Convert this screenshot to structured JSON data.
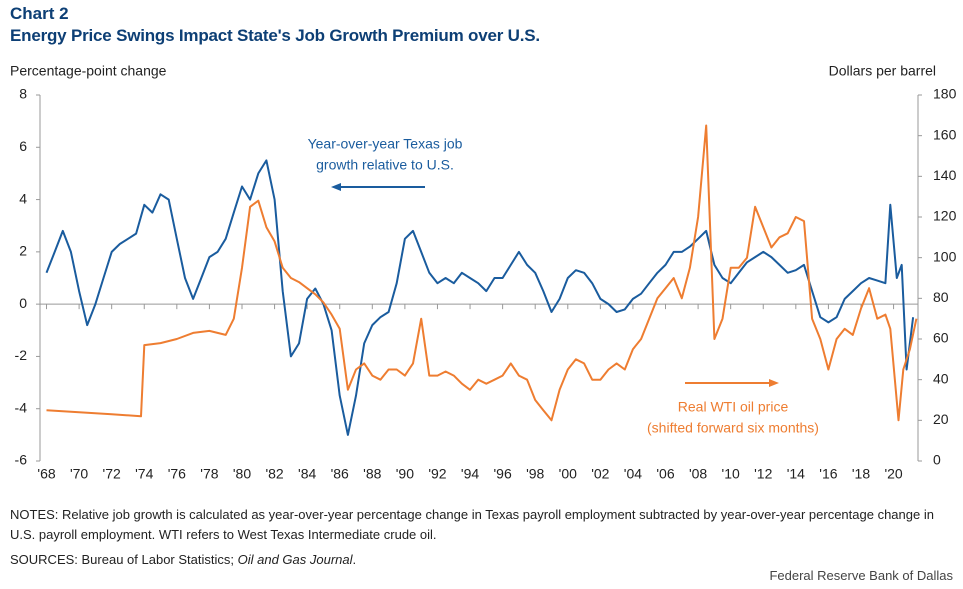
{
  "chart_data": {
    "type": "line",
    "chart_label": "Chart 2",
    "title": "Energy Price Swings Impact State's Job Growth Premium over U.S.",
    "ylabel": "Percentage-point change",
    "y2label": "Dollars per barrel",
    "xlim": [
      1967.6,
      2021.5
    ],
    "xticks": [
      {
        "value": 1968,
        "label": "'68"
      },
      {
        "value": 1970,
        "label": "'70"
      },
      {
        "value": 1972,
        "label": "'72"
      },
      {
        "value": 1974,
        "label": "'74"
      },
      {
        "value": 1976,
        "label": "'76"
      },
      {
        "value": 1978,
        "label": "'78"
      },
      {
        "value": 1980,
        "label": "'80"
      },
      {
        "value": 1982,
        "label": "'82"
      },
      {
        "value": 1984,
        "label": "'84"
      },
      {
        "value": 1986,
        "label": "'86"
      },
      {
        "value": 1988,
        "label": "'88"
      },
      {
        "value": 1990,
        "label": "'90"
      },
      {
        "value": 1992,
        "label": "'92"
      },
      {
        "value": 1994,
        "label": "'94"
      },
      {
        "value": 1996,
        "label": "'96"
      },
      {
        "value": 1998,
        "label": "'98"
      },
      {
        "value": 2000,
        "label": "'00"
      },
      {
        "value": 2002,
        "label": "'02"
      },
      {
        "value": 2004,
        "label": "'04"
      },
      {
        "value": 2006,
        "label": "'06"
      },
      {
        "value": 2008,
        "label": "'08"
      },
      {
        "value": 2010,
        "label": "'10"
      },
      {
        "value": 2012,
        "label": "'12"
      },
      {
        "value": 2014,
        "label": "'14"
      },
      {
        "value": 2016,
        "label": "'16"
      },
      {
        "value": 2018,
        "label": "'18"
      },
      {
        "value": 2020,
        "label": "'20"
      }
    ],
    "ylim": [
      -6,
      8
    ],
    "yticks": [
      -6,
      -4,
      -2,
      0,
      2,
      4,
      6,
      8
    ],
    "y2lim": [
      0,
      180
    ],
    "y2ticks": [
      0,
      20,
      40,
      60,
      80,
      100,
      120,
      140,
      160,
      180
    ],
    "series": [
      {
        "name": "Year-over-year Texas job growth relative to U.S.",
        "color": "#1a5c9e",
        "x": [
          1968,
          1968.5,
          1969,
          1969.5,
          1970,
          1970.5,
          1971,
          1971.5,
          1972,
          1972.5,
          1973,
          1973.5,
          1974,
          1974.5,
          1975,
          1975.5,
          1976,
          1976.5,
          1977,
          1977.5,
          1978,
          1978.5,
          1979,
          1979.5,
          1980,
          1980.5,
          1981,
          1981.5,
          1982,
          1982.5,
          1983,
          1983.5,
          1984,
          1984.5,
          1985,
          1985.5,
          1986,
          1986.5,
          1987,
          1987.5,
          1988,
          1988.5,
          1989,
          1989.5,
          1990,
          1990.5,
          1991,
          1991.5,
          1992,
          1992.5,
          1993,
          1993.5,
          1994,
          1994.5,
          1995,
          1995.5,
          1996,
          1996.5,
          1997,
          1997.5,
          1998,
          1998.5,
          1999,
          1999.5,
          2000,
          2000.5,
          2001,
          2001.5,
          2002,
          2002.5,
          2003,
          2003.5,
          2004,
          2004.5,
          2005,
          2005.5,
          2006,
          2006.5,
          2007,
          2007.5,
          2008,
          2008.5,
          2009,
          2009.5,
          2010,
          2010.5,
          2011,
          2011.5,
          2012,
          2012.5,
          2013,
          2013.5,
          2014,
          2014.5,
          2015,
          2015.5,
          2016,
          2016.5,
          2017,
          2017.5,
          2018,
          2018.5,
          2019,
          2019.5,
          2019.8,
          2020.2,
          2020.5,
          2020.8,
          2021.2
        ],
        "values": [
          1.2,
          2.0,
          2.8,
          2.0,
          0.5,
          -0.8,
          0.0,
          1.0,
          2.0,
          2.3,
          2.5,
          2.7,
          3.8,
          3.5,
          4.2,
          4.0,
          2.5,
          1.0,
          0.2,
          1.0,
          1.8,
          2.0,
          2.5,
          3.5,
          4.5,
          4.0,
          5.0,
          5.5,
          4.0,
          0.5,
          -2.0,
          -1.5,
          0.2,
          0.6,
          0.0,
          -1.0,
          -3.5,
          -5.0,
          -3.5,
          -1.5,
          -0.8,
          -0.5,
          -0.3,
          0.8,
          2.5,
          2.8,
          2.0,
          1.2,
          0.8,
          1.0,
          0.8,
          1.2,
          1.0,
          0.8,
          0.5,
          1.0,
          1.0,
          1.5,
          2.0,
          1.5,
          1.2,
          0.5,
          -0.3,
          0.2,
          1.0,
          1.3,
          1.2,
          0.8,
          0.2,
          0.0,
          -0.3,
          -0.2,
          0.2,
          0.4,
          0.8,
          1.2,
          1.5,
          2.0,
          2.0,
          2.2,
          2.5,
          2.8,
          1.5,
          1.0,
          0.8,
          1.2,
          1.6,
          1.8,
          2.0,
          1.8,
          1.5,
          1.2,
          1.3,
          1.5,
          0.5,
          -0.5,
          -0.7,
          -0.5,
          0.2,
          0.5,
          0.8,
          1.0,
          0.9,
          0.8,
          3.8,
          1.0,
          1.5,
          -2.5,
          -0.5
        ]
      },
      {
        "name": "Real WTI oil price (shifted forward six months)",
        "color": "#ee7d31",
        "axis": "y2",
        "x": [
          1968,
          1970,
          1972,
          1973.8,
          1974,
          1975,
          1976,
          1977,
          1978,
          1979,
          1979.5,
          1980,
          1980.5,
          1981,
          1981.5,
          1982,
          1982.5,
          1983,
          1983.5,
          1984,
          1984.5,
          1985,
          1985.5,
          1986,
          1986.5,
          1987,
          1987.5,
          1988,
          1988.5,
          1989,
          1989.5,
          1990,
          1990.5,
          1991,
          1991.5,
          1992,
          1992.5,
          1993,
          1993.5,
          1994,
          1994.5,
          1995,
          1995.5,
          1996,
          1996.5,
          1997,
          1997.5,
          1998,
          1998.5,
          1999,
          1999.5,
          2000,
          2000.5,
          2001,
          2001.5,
          2002,
          2002.5,
          2003,
          2003.5,
          2004,
          2004.5,
          2005,
          2005.5,
          2006,
          2006.5,
          2007,
          2007.5,
          2008,
          2008.5,
          2009,
          2009.5,
          2010,
          2010.5,
          2011,
          2011.5,
          2012,
          2012.5,
          2013,
          2013.5,
          2014,
          2014.5,
          2015,
          2015.5,
          2016,
          2016.5,
          2017,
          2017.5,
          2018,
          2018.5,
          2019,
          2019.5,
          2019.8,
          2020.3,
          2020.6,
          2021,
          2021.4
        ],
        "values": [
          25,
          24,
          23,
          22,
          57,
          58,
          60,
          63,
          64,
          62,
          70,
          95,
          125,
          128,
          115,
          108,
          95,
          90,
          88,
          85,
          82,
          78,
          72,
          65,
          35,
          45,
          48,
          42,
          40,
          45,
          45,
          42,
          48,
          70,
          42,
          42,
          44,
          42,
          38,
          35,
          40,
          38,
          40,
          42,
          48,
          42,
          40,
          30,
          25,
          20,
          35,
          45,
          50,
          48,
          40,
          40,
          45,
          48,
          45,
          55,
          60,
          70,
          80,
          85,
          90,
          80,
          95,
          120,
          165,
          60,
          70,
          95,
          95,
          100,
          125,
          115,
          105,
          110,
          112,
          120,
          118,
          70,
          60,
          45,
          60,
          65,
          62,
          75,
          85,
          70,
          72,
          65,
          20,
          45,
          55,
          70
        ]
      }
    ],
    "annotations": [
      {
        "lines": [
          "Year-over-year  Texas job",
          "growth relative to U.S."
        ],
        "color": "#1a5c9e"
      },
      {
        "lines": [
          "Real WTI oil price",
          "(shifted forward six months)"
        ],
        "color": "#ee7d31"
      }
    ]
  },
  "notes": "NOTES: Relative job growth is calculated as year-over-year percentage change in Texas payroll employment subtracted by year-over-year percentage change in U.S. payroll employment. WTI refers to West Texas Intermediate crude oil.",
  "sources": {
    "text": "SOURCES: Bureau of Labor Statistics;",
    "italic": "Oil and Gas Journal",
    "end": "."
  },
  "footer": "Federal Reserve Bank of Dallas"
}
